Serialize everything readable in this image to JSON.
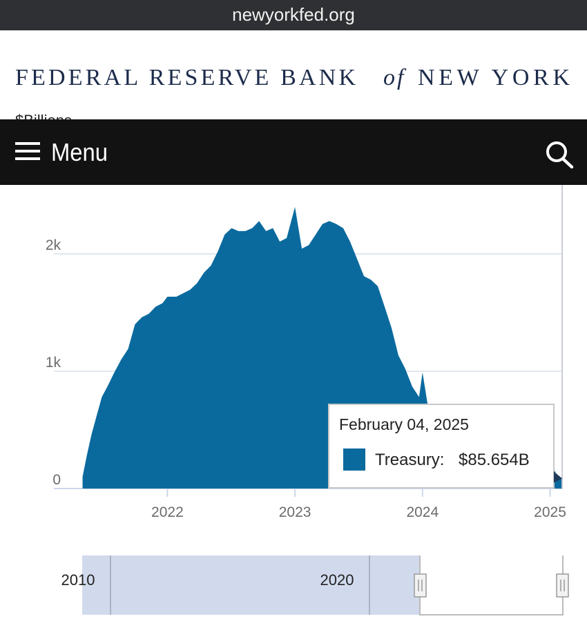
{
  "browser": {
    "url": "newyorkfed.org"
  },
  "header": {
    "title": [
      "FEDERAL RESERVE BANK",
      "of",
      "NEW YORK"
    ]
  },
  "nav": {
    "menu": "Menu"
  },
  "chart_data": {
    "type": "area",
    "y_label": "$Billions",
    "x": [
      2021.335,
      2021.368,
      2021.405,
      2021.449,
      2021.486,
      2021.53,
      2021.584,
      2021.638,
      2021.692,
      2021.746,
      2021.8,
      2021.854,
      2021.908,
      2021.962,
      2022.0,
      2022.07,
      2022.124,
      2022.178,
      2022.232,
      2022.286,
      2022.341,
      2022.395,
      2022.449,
      2022.503,
      2022.557,
      2022.611,
      2022.665,
      2022.719,
      2022.773,
      2022.827,
      2022.881,
      2022.935,
      2023.0,
      2023.054,
      2023.108,
      2023.162,
      2023.216,
      2023.27,
      2023.324,
      2023.378,
      2023.432,
      2023.486,
      2023.541,
      2023.595,
      2023.649,
      2023.703,
      2023.757,
      2023.811,
      2023.865,
      2023.919,
      2023.973,
      2024.0,
      2024.05,
      2024.15,
      2024.3,
      2024.45,
      2024.6,
      2024.75,
      2024.9,
      2025.0,
      2025.05,
      2025.095
    ],
    "values": [
      100,
      280,
      460,
      635,
      780,
      870,
      990,
      1100,
      1190,
      1400,
      1460,
      1490,
      1550,
      1580,
      1635,
      1635,
      1665,
      1695,
      1750,
      1840,
      1900,
      2020,
      2165,
      2220,
      2195,
      2195,
      2220,
      2280,
      2195,
      2220,
      2105,
      2135,
      2400,
      2045,
      2075,
      2165,
      2255,
      2280,
      2255,
      2220,
      2105,
      1960,
      1810,
      1780,
      1725,
      1550,
      1370,
      1135,
      1020,
      870,
      780,
      990,
      650,
      560,
      460,
      420,
      360,
      300,
      220,
      240,
      120,
      85.654
    ],
    "color": "#0a6a9e",
    "xlim": [
      2021.11,
      2025.1
    ],
    "xticks": [
      2022,
      2023,
      2024,
      2025
    ],
    "ylim": [
      0,
      3000
    ],
    "yticks": [
      0,
      {
        "value": 1000,
        "label": "1k"
      },
      {
        "value": 2000,
        "label": "2k"
      }
    ],
    "grid": true,
    "tooltip": {
      "date": "February 04, 2025",
      "label": "Treasury:",
      "value": 85.654,
      "value_label": "$85.654B"
    }
  },
  "navigator": {
    "labels": [
      "2010",
      "2020"
    ]
  }
}
